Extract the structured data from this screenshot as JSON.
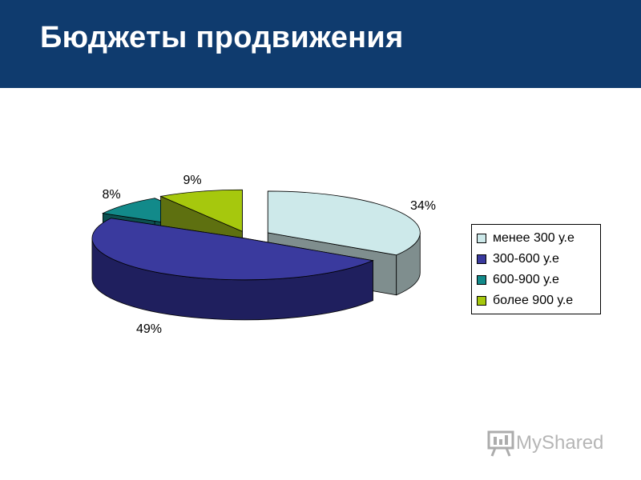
{
  "header": {
    "title": "Бюджеты продвижения",
    "background": "#0f3b6e"
  },
  "chart_data": {
    "type": "pie",
    "style": "3d-exploded",
    "categories": [
      "менее 300 у.е",
      "300-600 у.е",
      "600-900 у.е",
      "более 900 у.е"
    ],
    "values": [
      34,
      49,
      8,
      9
    ],
    "data_labels": [
      "34%",
      "49%",
      "8%",
      "9%"
    ],
    "colors": [
      "#cde9ea",
      "#3a3a9e",
      "#128a8a",
      "#a6c80d"
    ],
    "side_colors": [
      "#7f8e8e",
      "#1f1f5e",
      "#0c5050",
      "#5e7010"
    ],
    "legend": "right"
  },
  "watermark": {
    "text": "MyShared",
    "icon": "presentation-board-icon"
  }
}
